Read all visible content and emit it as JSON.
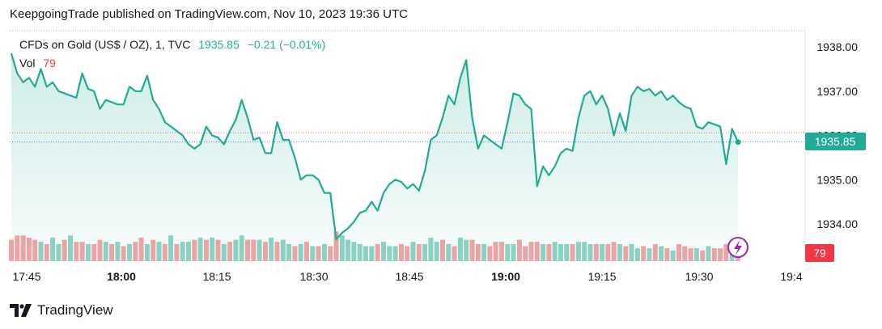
{
  "header": {
    "published": "KeepgoingTrade published on TradingView.com, Nov 10, 2023 19:36 UTC"
  },
  "legend": {
    "symbol": "CFDs on Gold (US$ / OZ), 1, TVC",
    "price": "1935.85",
    "change": "−0.21 (−0.01%)",
    "vol_label": "Vol",
    "vol_value": "79"
  },
  "colors": {
    "line": "#22ab94",
    "vol_up": "#8fd3c6",
    "vol_down": "#f2a4a6",
    "badge": "#22ab94",
    "vol_badge": "#f23645"
  },
  "brand": {
    "name": "TradingView",
    "logo_icon": "tradingview-logo-icon"
  },
  "badges": {
    "last_price": "1935.85",
    "last_vol": "79"
  },
  "icons": {
    "flash": "lightning-icon"
  },
  "chart_data": {
    "type": "line",
    "x_ticks": [
      "17:45",
      "18:00",
      "18:15",
      "18:30",
      "18:45",
      "19:00",
      "19:15",
      "19:30",
      "19:4"
    ],
    "y_ticks": [
      "1938.00",
      "1937.00",
      "1936.00",
      "1935.00",
      "1934.00"
    ],
    "ylim": [
      1933.1,
      1938.3
    ],
    "grid": false,
    "series": [
      {
        "values": [
          1937.85,
          1937.4,
          1937.2,
          1937.3,
          1937.1,
          1937.5,
          1937.1,
          1937.2,
          1937.0,
          1936.95,
          1936.9,
          1936.85,
          1937.4,
          1937.05,
          1937.0,
          1936.6,
          1936.8,
          1936.75,
          1936.7,
          1936.7,
          1937.1,
          1937.0,
          1937.0,
          1937.35,
          1936.8,
          1936.6,
          1936.3,
          1936.2,
          1936.1,
          1936.0,
          1935.8,
          1935.7,
          1935.8,
          1936.2,
          1936.0,
          1935.95,
          1935.8,
          1936.1,
          1936.35,
          1936.8,
          1936.4,
          1935.9,
          1935.95,
          1935.6,
          1935.6,
          1936.3,
          1935.9,
          1935.9,
          1935.5,
          1935.0,
          1935.1,
          1935.1,
          1935.0,
          1934.7,
          1934.7,
          1933.65,
          1933.8,
          1933.9,
          1934.05,
          1934.25,
          1934.3,
          1934.5,
          1934.3,
          1934.7,
          1934.9,
          1935.0,
          1934.95,
          1934.8,
          1934.9,
          1934.75,
          1935.2,
          1935.9,
          1936.0,
          1936.4,
          1936.9,
          1936.7,
          1937.3,
          1937.7,
          1936.4,
          1935.7,
          1936.0,
          1935.9,
          1935.8,
          1935.7,
          1936.3,
          1936.95,
          1936.9,
          1936.7,
          1936.6,
          1934.85,
          1935.3,
          1935.1,
          1935.3,
          1935.6,
          1935.7,
          1935.65,
          1936.4,
          1936.9,
          1937.0,
          1936.7,
          1936.9,
          1936.6,
          1936.0,
          1936.5,
          1936.1,
          1936.9,
          1937.1,
          1937.0,
          1937.05,
          1936.9,
          1937.0,
          1936.8,
          1936.9,
          1936.75,
          1936.65,
          1936.6,
          1936.2,
          1936.15,
          1936.3,
          1936.25,
          1936.2,
          1935.35,
          1936.15,
          1935.85
        ]
      }
    ],
    "volume": {
      "values": [
        10,
        12,
        12,
        11,
        10,
        9,
        8,
        11,
        8,
        10,
        12,
        9,
        9,
        8,
        8,
        10,
        9,
        8,
        9,
        7,
        8,
        9,
        11,
        8,
        10,
        9,
        8,
        12,
        8,
        9,
        9,
        10,
        11,
        10,
        11,
        10,
        8,
        9,
        10,
        12,
        10,
        10,
        10,
        9,
        11,
        9,
        10,
        8,
        7,
        8,
        9,
        7,
        7,
        8,
        7,
        14,
        12,
        10,
        9,
        8,
        7,
        7,
        8,
        9,
        7,
        7,
        8,
        7,
        9,
        8,
        8,
        11,
        9,
        10,
        8,
        7,
        11,
        10,
        10,
        8,
        8,
        7,
        9,
        9,
        8,
        8,
        10,
        7,
        9,
        9,
        8,
        8,
        9,
        8,
        8,
        8,
        9,
        9,
        8,
        8,
        8,
        8,
        9,
        8,
        7,
        8,
        6,
        7,
        6,
        8,
        7,
        6,
        5,
        8,
        7,
        6,
        6,
        5,
        7,
        6,
        6,
        8,
        7,
        6
      ],
      "colors": [
        "d",
        "d",
        "d",
        "d",
        "d",
        "u",
        "d",
        "u",
        "u",
        "d",
        "u",
        "d",
        "d",
        "u",
        "d",
        "d",
        "u",
        "d",
        "u",
        "d",
        "u",
        "d",
        "d",
        "u",
        "d",
        "u",
        "d",
        "u",
        "d",
        "u",
        "u",
        "d",
        "u",
        "d",
        "u",
        "d",
        "u",
        "d",
        "u",
        "u",
        "d",
        "d",
        "u",
        "d",
        "u",
        "d",
        "u",
        "u",
        "d",
        "u",
        "d",
        "u",
        "d",
        "u",
        "d",
        "d",
        "u",
        "u",
        "u",
        "u",
        "u",
        "u",
        "d",
        "u",
        "u",
        "u",
        "d",
        "d",
        "u",
        "d",
        "u",
        "u",
        "u",
        "d",
        "u",
        "d",
        "u",
        "u",
        "d",
        "d",
        "u",
        "d",
        "d",
        "d",
        "u",
        "u",
        "d",
        "d",
        "d",
        "d",
        "u",
        "d",
        "u",
        "u",
        "u",
        "d",
        "u",
        "u",
        "u",
        "d",
        "u",
        "d",
        "d",
        "u",
        "d",
        "u",
        "u",
        "d",
        "u",
        "d",
        "u",
        "d",
        "u",
        "d",
        "d",
        "d",
        "u",
        "d",
        "u",
        "d",
        "d",
        "d",
        "u",
        "d"
      ]
    }
  }
}
